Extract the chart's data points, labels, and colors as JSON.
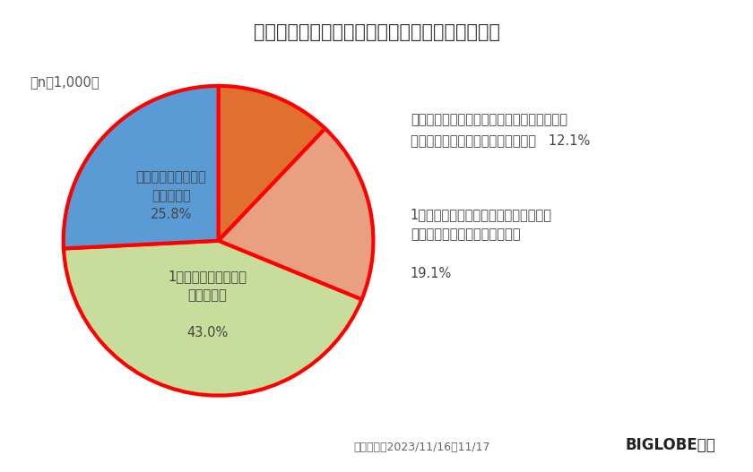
{
  "title": "昨今の物価上昇にともない生活に不安を感じるか",
  "sample_size": "（n＝1,000）",
  "slices": [
    {
      "value": 12.1,
      "color": "#E07030"
    },
    {
      "value": 19.1,
      "color": "#E8A080"
    },
    {
      "value": 43.0,
      "color": "#C8DC9C"
    },
    {
      "value": 25.8,
      "color": "#5B9BD5"
    }
  ],
  "pie_edge_color": "#FF0000",
  "pie_edge_width": 3.0,
  "label_outside_0_line1": "今までは感じなかったが、最近（ここ数ヶ月",
  "label_outside_0_line2": "前から）不安を感じるようになった   12.1%",
  "label_outside_1_line1": "1年以上前から感じていて、最近（ここ",
  "label_outside_1_line2": "数ヶ月）より不安を感じている",
  "label_outside_1_line3": "19.1%",
  "label_inside_2_line1": "1年以上前から不安を",
  "label_inside_2_line2": "感じている",
  "label_inside_2_line3": "43.0%",
  "label_inside_3_line1": "生活に不安を感じる",
  "label_inside_3_line2": "ことはない",
  "label_inside_3_line3": "25.8%",
  "footnote": "調査期間：2023/11/16～11/17",
  "brand": "BIGLOBE調べ",
  "background_color": "#FFFFFF",
  "title_fontsize": 15,
  "label_fontsize": 10.5,
  "inside_label_fontsize": 10.5,
  "footnote_fontsize": 9,
  "brand_fontsize": 12
}
